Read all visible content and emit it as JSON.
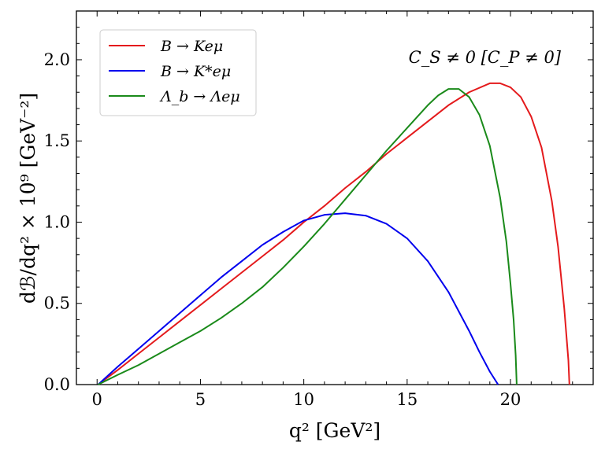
{
  "chart_data": {
    "type": "line",
    "xlabel": "q² [GeV²]",
    "ylabel": "dℬ/dq² × 10⁹ [GeV⁻²]",
    "xlim": [
      -1,
      24
    ],
    "ylim": [
      0,
      2.3
    ],
    "xticks": [
      0,
      5,
      10,
      15,
      20
    ],
    "yticks": [
      0.0,
      0.5,
      1.0,
      1.5,
      2.0
    ],
    "xtick_labels": [
      "0",
      "5",
      "10",
      "15",
      "20"
    ],
    "ytick_labels": [
      "0.0",
      "0.5",
      "1.0",
      "1.5",
      "2.0"
    ],
    "grid": false,
    "legend_position": "top-left",
    "annotation": "C_S ≠ 0 [C_P ≠ 0]",
    "series": [
      {
        "name": "B → Keμ",
        "color": "#e41a1c",
        "x": [
          0.05,
          1,
          2,
          3,
          4,
          5,
          6,
          7,
          8,
          9,
          10,
          11,
          12,
          13,
          14,
          15,
          16,
          17,
          18,
          19,
          19.5,
          20,
          20.5,
          21,
          21.5,
          22,
          22.3,
          22.6,
          22.8,
          22.85
        ],
        "y": [
          0.0,
          0.09,
          0.19,
          0.29,
          0.39,
          0.49,
          0.59,
          0.69,
          0.79,
          0.89,
          1.0,
          1.1,
          1.21,
          1.31,
          1.42,
          1.52,
          1.62,
          1.72,
          1.8,
          1.855,
          1.855,
          1.83,
          1.77,
          1.65,
          1.46,
          1.13,
          0.85,
          0.47,
          0.15,
          0.0
        ]
      },
      {
        "name": "B → K*eμ",
        "color": "#0000ee",
        "x": [
          0.05,
          1,
          2,
          3,
          4,
          5,
          6,
          7,
          8,
          9,
          10,
          11,
          12,
          13,
          14,
          15,
          16,
          17,
          18,
          18.5,
          19,
          19.3,
          19.4
        ],
        "y": [
          0.0,
          0.11,
          0.22,
          0.33,
          0.44,
          0.55,
          0.66,
          0.76,
          0.86,
          0.94,
          1.01,
          1.045,
          1.055,
          1.04,
          0.99,
          0.9,
          0.76,
          0.57,
          0.33,
          0.2,
          0.08,
          0.02,
          0.0
        ]
      },
      {
        "name": "Λ_b → Λeμ",
        "color": "#1a8a1a",
        "x": [
          0.05,
          1,
          2,
          3,
          4,
          5,
          6,
          7,
          8,
          9,
          10,
          11,
          12,
          13,
          14,
          15,
          16,
          16.5,
          17,
          17.5,
          18,
          18.5,
          19,
          19.5,
          19.8,
          20.0,
          20.15,
          20.25,
          20.3
        ],
        "y": [
          0.0,
          0.06,
          0.12,
          0.19,
          0.26,
          0.33,
          0.41,
          0.5,
          0.6,
          0.72,
          0.85,
          0.99,
          1.14,
          1.29,
          1.44,
          1.58,
          1.72,
          1.78,
          1.82,
          1.82,
          1.77,
          1.66,
          1.47,
          1.15,
          0.88,
          0.62,
          0.4,
          0.18,
          0.0
        ]
      }
    ]
  }
}
